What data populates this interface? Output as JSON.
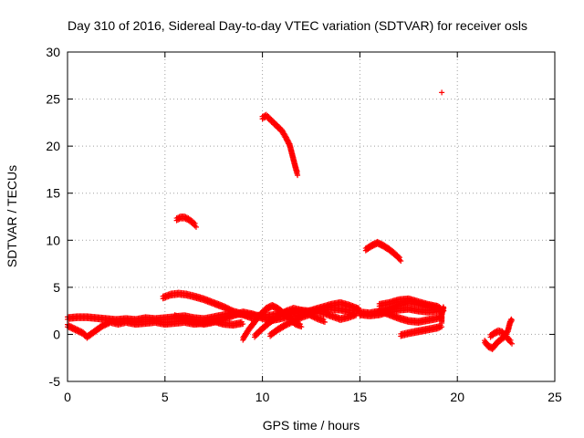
{
  "chart_data": {
    "type": "scatter",
    "title": "Day 310 of 2016, Sidereal Day-to-day VTEC variation (SDTVAR) for receiver osls",
    "xlabel": "GPS time / hours",
    "ylabel": "SDTVAR / TECUs",
    "xlim": [
      0,
      25
    ],
    "ylim": [
      -5,
      30
    ],
    "x_ticks": [
      0,
      5,
      10,
      15,
      20,
      25
    ],
    "y_ticks": [
      -5,
      0,
      5,
      10,
      15,
      20,
      25,
      30
    ],
    "x_tick_labels": [
      "0",
      "5",
      "10",
      "15",
      "20",
      "25"
    ],
    "y_tick_labels": [
      "-5",
      "0",
      "5",
      "10",
      "15",
      "20",
      "25",
      "30"
    ],
    "grid": true,
    "marker": "plus",
    "color": "#ff0000",
    "series": [
      {
        "points": [
          [
            0.0,
            1.6
          ],
          [
            0.5,
            1.7
          ],
          [
            1.0,
            1.7
          ],
          [
            1.5,
            1.6
          ],
          [
            2.0,
            1.5
          ],
          [
            2.5,
            1.4
          ],
          [
            3.0,
            1.5
          ],
          [
            3.5,
            1.4
          ],
          [
            4.0,
            1.6
          ],
          [
            4.5,
            1.5
          ],
          [
            5.0,
            1.6
          ],
          [
            5.5,
            1.7
          ],
          [
            6.0,
            1.8
          ],
          [
            6.5,
            1.6
          ],
          [
            7.0,
            1.5
          ],
          [
            7.5,
            1.7
          ],
          [
            8.0,
            1.9
          ],
          [
            8.5,
            2.1
          ],
          [
            9.0,
            2.0
          ],
          [
            9.5,
            1.9
          ],
          [
            10.0,
            1.8
          ],
          [
            10.5,
            1.9
          ],
          [
            11.0,
            2.1
          ],
          [
            11.5,
            2.3
          ],
          [
            12.0,
            2.4
          ],
          [
            12.5,
            2.3
          ],
          [
            13.0,
            2.5
          ],
          [
            13.5,
            2.6
          ],
          [
            14.0,
            2.5
          ],
          [
            14.5,
            2.3
          ],
          [
            15.0,
            2.2
          ],
          [
            15.5,
            2.1
          ],
          [
            16.0,
            2.3
          ],
          [
            16.5,
            2.6
          ],
          [
            17.0,
            3.0
          ],
          [
            17.5,
            3.3
          ],
          [
            18.0,
            3.1
          ],
          [
            18.5,
            2.9
          ],
          [
            19.0,
            2.7
          ]
        ]
      },
      {
        "points": [
          [
            0.0,
            0.8
          ],
          [
            0.4,
            0.4
          ],
          [
            0.8,
            0.0
          ],
          [
            1.0,
            -0.4
          ],
          [
            1.4,
            0.2
          ],
          [
            1.8,
            0.8
          ],
          [
            2.2,
            1.2
          ],
          [
            2.6,
            1.0
          ],
          [
            3.0,
            1.2
          ],
          [
            3.5,
            1.0
          ],
          [
            4.0,
            1.1
          ],
          [
            4.5,
            1.2
          ],
          [
            5.0,
            1.0
          ],
          [
            5.5,
            1.1
          ],
          [
            6.0,
            1.2
          ],
          [
            6.5,
            1.0
          ],
          [
            7.0,
            1.1
          ],
          [
            7.5,
            1.3
          ],
          [
            8.0,
            1.0
          ],
          [
            8.5,
            0.9
          ],
          [
            9.0,
            1.1
          ]
        ]
      },
      {
        "points": [
          [
            4.9,
            3.8
          ],
          [
            5.3,
            4.1
          ],
          [
            5.7,
            4.2
          ],
          [
            6.1,
            4.1
          ],
          [
            6.5,
            3.9
          ],
          [
            7.0,
            3.6
          ],
          [
            7.5,
            3.2
          ],
          [
            8.0,
            2.8
          ],
          [
            8.5,
            2.3
          ],
          [
            9.0,
            2.0
          ],
          [
            9.5,
            1.6
          ]
        ]
      },
      {
        "points": [
          [
            5.5,
            1.8
          ],
          [
            6.0,
            1.5
          ],
          [
            6.5,
            1.2
          ],
          [
            7.0,
            1.0
          ],
          [
            7.5,
            1.2
          ],
          [
            8.0,
            1.5
          ],
          [
            8.5,
            1.9
          ],
          [
            9.0,
            2.2
          ],
          [
            9.5,
            2.0
          ],
          [
            10.0,
            1.6
          ],
          [
            10.5,
            1.4
          ],
          [
            11.0,
            1.6
          ],
          [
            11.5,
            1.9
          ],
          [
            12.0,
            2.1
          ],
          [
            12.5,
            2.4
          ],
          [
            13.0,
            2.7
          ],
          [
            13.5,
            3.0
          ],
          [
            14.0,
            3.2
          ],
          [
            14.5,
            2.9
          ],
          [
            15.0,
            2.5
          ]
        ]
      },
      {
        "points": [
          [
            9.0,
            -0.6
          ],
          [
            9.3,
            0.4
          ],
          [
            9.6,
            1.2
          ],
          [
            9.9,
            2.0
          ],
          [
            10.2,
            2.6
          ],
          [
            10.5,
            2.9
          ],
          [
            10.8,
            2.6
          ],
          [
            11.1,
            2.1
          ],
          [
            11.4,
            1.5
          ],
          [
            11.7,
            1.0
          ],
          [
            12.0,
            0.8
          ]
        ]
      },
      {
        "points": [
          [
            9.6,
            -0.3
          ],
          [
            10.0,
            0.5
          ],
          [
            10.4,
            1.2
          ],
          [
            10.8,
            1.8
          ],
          [
            11.2,
            2.3
          ],
          [
            11.6,
            2.6
          ],
          [
            12.0,
            2.4
          ],
          [
            12.4,
            2.0
          ],
          [
            12.8,
            1.6
          ],
          [
            13.2,
            1.3
          ]
        ]
      },
      {
        "points": [
          [
            10.4,
            -0.2
          ],
          [
            10.8,
            0.4
          ],
          [
            11.2,
            0.9
          ],
          [
            11.6,
            1.3
          ],
          [
            12.0,
            1.7
          ],
          [
            12.4,
            2.0
          ],
          [
            12.8,
            2.3
          ],
          [
            13.2,
            2.1
          ],
          [
            13.6,
            1.8
          ],
          [
            14.0,
            1.5
          ],
          [
            14.4,
            1.7
          ],
          [
            14.8,
            2.0
          ]
        ]
      },
      {
        "points": [
          [
            15.0,
            2.0
          ],
          [
            15.5,
            1.9
          ],
          [
            16.0,
            2.0
          ],
          [
            16.5,
            2.3
          ],
          [
            17.0,
            2.5
          ],
          [
            17.5,
            2.6
          ],
          [
            18.0,
            2.4
          ],
          [
            18.5,
            2.3
          ],
          [
            19.0,
            2.4
          ],
          [
            19.3,
            2.5
          ]
        ]
      },
      {
        "points": [
          [
            16.0,
            3.0
          ],
          [
            16.5,
            3.2
          ],
          [
            17.0,
            3.5
          ],
          [
            17.5,
            3.6
          ],
          [
            18.0,
            3.3
          ],
          [
            18.5,
            3.0
          ],
          [
            19.0,
            2.8
          ],
          [
            19.2,
            2.5
          ]
        ]
      },
      {
        "points": [
          [
            16.0,
            2.4
          ],
          [
            16.5,
            2.0
          ],
          [
            17.0,
            1.6
          ],
          [
            17.5,
            1.3
          ],
          [
            18.0,
            1.2
          ],
          [
            18.5,
            1.4
          ],
          [
            19.0,
            1.6
          ],
          [
            19.2,
            1.8
          ]
        ]
      },
      {
        "points": [
          [
            17.1,
            -0.2
          ],
          [
            17.5,
            0.0
          ],
          [
            18.0,
            0.2
          ],
          [
            18.5,
            0.4
          ],
          [
            19.0,
            0.6
          ],
          [
            19.2,
            0.8
          ]
        ]
      },
      {
        "points": [
          [
            19.2,
            1.2
          ],
          [
            19.2,
            2.0
          ],
          [
            19.3,
            2.8
          ]
        ]
      },
      {
        "points": [
          [
            5.6,
            12.1
          ],
          [
            5.8,
            12.3
          ],
          [
            6.0,
            12.3
          ],
          [
            6.2,
            12.1
          ],
          [
            6.4,
            11.8
          ],
          [
            6.6,
            11.4
          ]
        ]
      },
      {
        "points": [
          [
            10.0,
            22.9
          ],
          [
            10.2,
            23.1
          ],
          [
            10.4,
            22.7
          ],
          [
            10.6,
            22.3
          ],
          [
            10.8,
            21.9
          ],
          [
            11.0,
            21.5
          ],
          [
            11.2,
            20.8
          ],
          [
            11.4,
            20.0
          ],
          [
            11.5,
            19.2
          ],
          [
            11.6,
            18.4
          ],
          [
            11.7,
            17.6
          ],
          [
            11.8,
            16.9
          ]
        ]
      },
      {
        "points": [
          [
            15.3,
            8.9
          ],
          [
            15.6,
            9.3
          ],
          [
            15.9,
            9.6
          ],
          [
            16.2,
            9.3
          ],
          [
            16.5,
            8.9
          ],
          [
            16.8,
            8.4
          ],
          [
            17.1,
            7.8
          ]
        ]
      },
      {
        "points": [
          [
            21.4,
            -0.9
          ],
          [
            21.6,
            -1.4
          ],
          [
            21.8,
            -1.6
          ],
          [
            22.0,
            -1.1
          ],
          [
            22.2,
            -0.7
          ],
          [
            22.4,
            -0.4
          ],
          [
            22.6,
            0.3
          ],
          [
            22.7,
            1.1
          ],
          [
            22.8,
            1.5
          ]
        ]
      },
      {
        "points": [
          [
            21.7,
            -0.3
          ],
          [
            21.9,
            0.0
          ],
          [
            22.1,
            0.2
          ],
          [
            22.3,
            0.1
          ],
          [
            22.6,
            -0.6
          ],
          [
            22.8,
            -1.0
          ]
        ]
      },
      {
        "points": [
          [
            19.2,
            25.7
          ]
        ]
      }
    ]
  }
}
